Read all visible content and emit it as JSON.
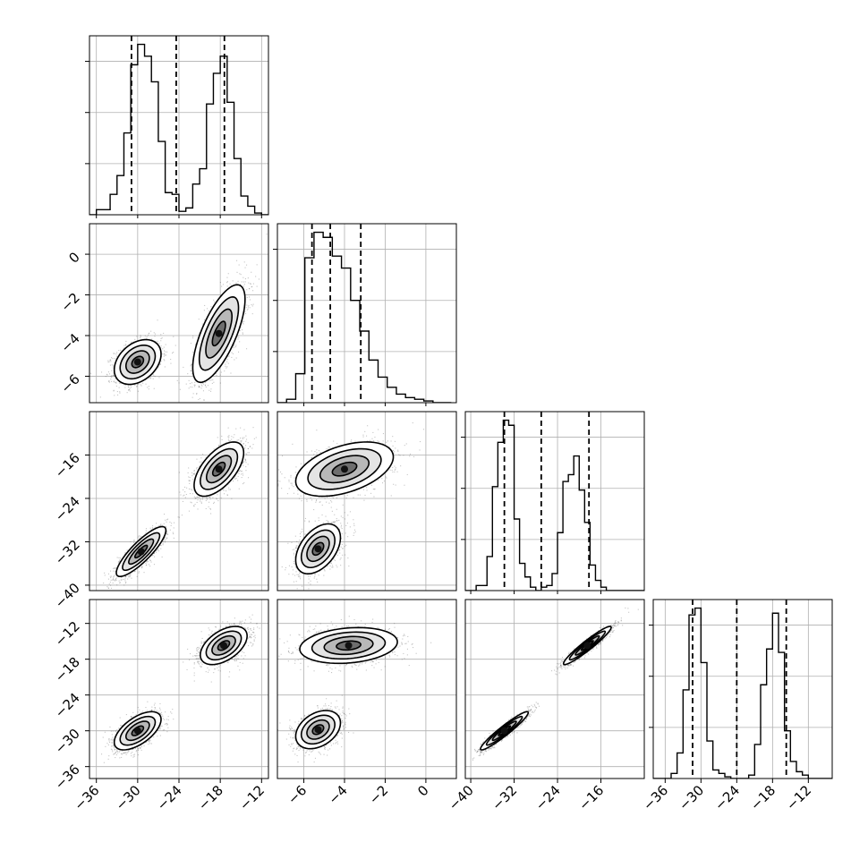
{
  "chart_data": {
    "type": "corner",
    "parameters": [
      {
        "range": [
          -37,
          -11
        ],
        "ticks": [
          -36,
          -30,
          -24,
          -18,
          -12
        ],
        "tick_labels": [
          "−36",
          "−30",
          "−24",
          "−18",
          "−12"
        ]
      },
      {
        "range": [
          -7.3,
          1.5
        ],
        "ticks": [
          -6,
          -4,
          -2,
          0
        ],
        "tick_labels": [
          "−6",
          "−4",
          "−2",
          "0"
        ]
      },
      {
        "range": [
          -41,
          -8
        ],
        "ticks": [
          -40,
          -32,
          -24,
          -16
        ],
        "tick_labels": [
          "−40",
          "−32",
          "−24",
          "−16"
        ]
      },
      {
        "range": [
          -38,
          -8
        ],
        "ticks": [
          -36,
          -30,
          -24,
          -18,
          -12
        ],
        "tick_labels": [
          "−36",
          "−30",
          "−24",
          "−18",
          "−12"
        ]
      }
    ],
    "histograms": [
      {
        "parameter": 0,
        "bin_edges": [
          -37,
          -36,
          -35,
          -34,
          -33,
          -32,
          -31,
          -30,
          -29,
          -28,
          -27,
          -26,
          -25,
          -24,
          -23,
          -22,
          -21,
          -20,
          -19,
          -18,
          -17,
          -16,
          -15,
          -14,
          -13,
          -12,
          -11
        ],
        "counts": [
          0,
          3,
          3,
          12,
          23,
          48,
          88,
          100,
          93,
          78,
          43,
          13,
          12,
          2,
          4,
          18,
          27,
          65,
          83,
          93,
          66,
          33,
          11,
          5,
          1,
          0
        ],
        "quantiles": [
          -30.9,
          -24.4,
          -17.4
        ]
      },
      {
        "parameter": 1,
        "bin_edges": [
          -7.3,
          -6.85,
          -6.4,
          -5.95,
          -5.5,
          -5.05,
          -4.6,
          -4.15,
          -3.7,
          -3.25,
          -2.8,
          -2.35,
          -1.9,
          -1.45,
          -1.0,
          -0.55,
          -0.1,
          0.35,
          0.8,
          1.25
        ],
        "counts": [
          0,
          2,
          17,
          85,
          100,
          97,
          86,
          79,
          60,
          42,
          25,
          15,
          9,
          5,
          3,
          2,
          1,
          0,
          0
        ],
        "quantiles": [
          -5.6,
          -4.7,
          -3.2
        ]
      },
      {
        "parameter": 2,
        "bin_edges": [
          -41,
          -40,
          -39,
          -38,
          -37,
          -36,
          -35,
          -34,
          -33,
          -32,
          -31,
          -30,
          -29,
          -28,
          -27,
          -26,
          -25,
          -24,
          -23,
          -22,
          -21,
          -20,
          -19,
          -18,
          -17,
          -16,
          -15,
          -14,
          -13,
          -12,
          -11,
          -10,
          -9,
          -8
        ],
        "counts": [
          0,
          0,
          3,
          3,
          20,
          61,
          87,
          100,
          97,
          42,
          16,
          8,
          2,
          0,
          2,
          3,
          10,
          34,
          64,
          68,
          79,
          59,
          40,
          15,
          6,
          2,
          0,
          0,
          0,
          0,
          0,
          0,
          0
        ],
        "quantiles": [
          -33.8,
          -27.0,
          -18.2
        ]
      },
      {
        "parameter": 3,
        "bin_edges": [
          -38,
          -37,
          -36,
          -35,
          -34,
          -33,
          -32,
          -31,
          -30,
          -29,
          -28,
          -27,
          -26,
          -25,
          -24,
          -23,
          -22,
          -21,
          -20,
          -19,
          -18,
          -17,
          -16,
          -15,
          -14,
          -13,
          -12,
          -11,
          -10,
          -9,
          -8
        ],
        "counts": [
          0,
          0,
          0,
          3,
          15,
          52,
          96,
          100,
          68,
          22,
          5,
          3,
          1,
          0,
          0,
          0,
          2,
          20,
          55,
          76,
          97,
          74,
          28,
          10,
          4,
          2,
          0,
          0,
          0,
          0
        ],
        "quantiles": [
          -31.4,
          -24.0,
          -15.7
        ]
      }
    ],
    "pairs": [
      {
        "x": 0,
        "y": 1,
        "clusters": [
          {
            "mean": [
              -30,
              -5.3
            ],
            "sd": [
              1.7,
              0.55
            ],
            "rho": 0.35
          },
          {
            "mean": [
              -18.2,
              -3.9
            ],
            "sd": [
              1.9,
              1.2
            ],
            "rho": 0.7
          }
        ]
      },
      {
        "x": 0,
        "y": 2,
        "clusters": [
          {
            "mean": [
              -29.5,
              -33.8
            ],
            "sd": [
              1.8,
              2.3
            ],
            "rho": 0.85
          },
          {
            "mean": [
              -18.2,
              -18.6
            ],
            "sd": [
              1.8,
              2.5
            ],
            "rho": 0.6
          }
        ]
      },
      {
        "x": 1,
        "y": 2,
        "clusters": [
          {
            "mean": [
              -5.3,
              -33.3
            ],
            "sd": [
              0.55,
              2.3
            ],
            "rho": 0.45
          },
          {
            "mean": [
              -4.0,
              -18.6
            ],
            "sd": [
              1.2,
              2.5
            ],
            "rho": 0.45
          }
        ]
      },
      {
        "x": 0,
        "y": 3,
        "clusters": [
          {
            "mean": [
              -30,
              -30
            ],
            "sd": [
              1.7,
              1.6
            ],
            "rho": 0.6
          },
          {
            "mean": [
              -17.5,
              -15.7
            ],
            "sd": [
              1.7,
              1.6
            ],
            "rho": 0.5
          }
        ]
      },
      {
        "x": 1,
        "y": 3,
        "clusters": [
          {
            "mean": [
              -5.3,
              -29.8
            ],
            "sd": [
              0.55,
              1.6
            ],
            "rho": 0.35
          },
          {
            "mean": [
              -3.8,
              -15.7
            ],
            "sd": [
              1.2,
              1.5
            ],
            "rho": 0.2
          }
        ]
      },
      {
        "x": 2,
        "y": 3,
        "clusters": [
          {
            "mean": [
              -33.8,
              -30
            ],
            "sd": [
              2.2,
              1.6
            ],
            "rho": 0.95
          },
          {
            "mean": [
              -18.5,
              -15.7
            ],
            "sd": [
              2.2,
              1.6
            ],
            "rho": 0.95
          }
        ]
      }
    ],
    "contour_levels_sigma": [
      0.5,
      1.0,
      1.5,
      2.0
    ],
    "grid": true,
    "colors": {
      "line": "#000000",
      "points": "#555555",
      "grid": "#b0b0b0"
    }
  }
}
